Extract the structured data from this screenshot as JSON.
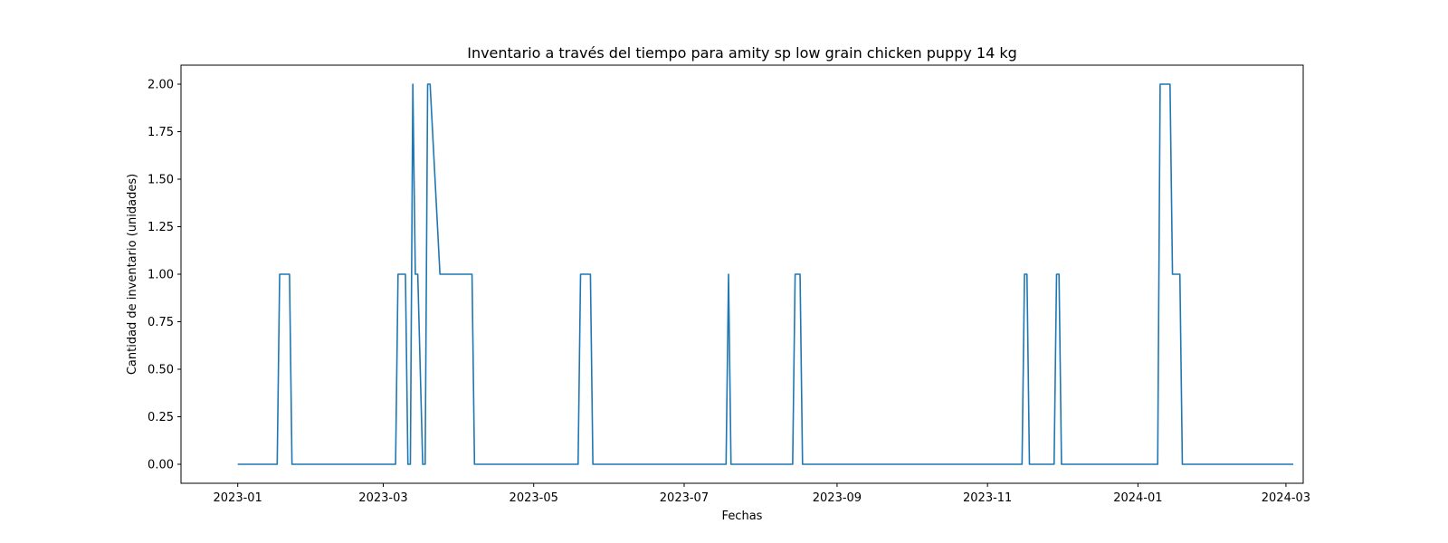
{
  "chart_data": {
    "type": "line",
    "title": "Inventario a través del tiempo para amity sp low grain chicken puppy 14 kg",
    "xlabel": "Fechas",
    "ylabel": "Cantidad de inventario (unidades)",
    "xlim": [
      "2022-12-09",
      "2024-03-08"
    ],
    "ylim": [
      -0.1,
      2.1
    ],
    "grid": false,
    "legend": false,
    "x_ticks": [
      "2023-01",
      "2023-03",
      "2023-05",
      "2023-07",
      "2023-09",
      "2023-11",
      "2024-01",
      "2024-03"
    ],
    "y_ticks": [
      "0.00",
      "0.25",
      "0.50",
      "0.75",
      "1.00",
      "1.25",
      "1.50",
      "1.75",
      "2.00"
    ],
    "series": [
      {
        "color": "#1f77b4",
        "x": [
          "2023-01-01",
          "2023-01-17",
          "2023-01-18",
          "2023-01-22",
          "2023-01-23",
          "2023-03-06",
          "2023-03-07",
          "2023-03-10",
          "2023-03-11",
          "2023-03-12",
          "2023-03-13",
          "2023-03-14",
          "2023-03-15",
          "2023-03-17",
          "2023-03-18",
          "2023-03-19",
          "2023-03-20",
          "2023-03-24",
          "2023-03-25",
          "2023-04-06",
          "2023-04-07",
          "2023-05-19",
          "2023-05-20",
          "2023-05-24",
          "2023-05-25",
          "2023-07-18",
          "2023-07-19",
          "2023-07-20",
          "2023-08-14",
          "2023-08-15",
          "2023-08-17",
          "2023-08-18",
          "2023-11-15",
          "2023-11-16",
          "2023-11-17",
          "2023-11-18",
          "2023-11-28",
          "2023-11-29",
          "2023-11-30",
          "2023-12-01",
          "2024-01-09",
          "2024-01-10",
          "2024-01-14",
          "2024-01-15",
          "2024-01-18",
          "2024-01-19",
          "2024-03-04"
        ],
        "y": [
          0,
          0,
          1,
          1,
          0,
          0,
          1,
          1,
          0,
          0,
          2,
          1,
          1,
          0,
          0,
          2,
          2,
          1,
          1,
          1,
          0,
          0,
          1,
          1,
          0,
          0,
          1,
          0,
          0,
          1,
          1,
          0,
          0,
          1,
          1,
          0,
          0,
          1,
          1,
          0,
          0,
          2,
          2,
          1,
          1,
          0,
          0
        ]
      }
    ]
  }
}
